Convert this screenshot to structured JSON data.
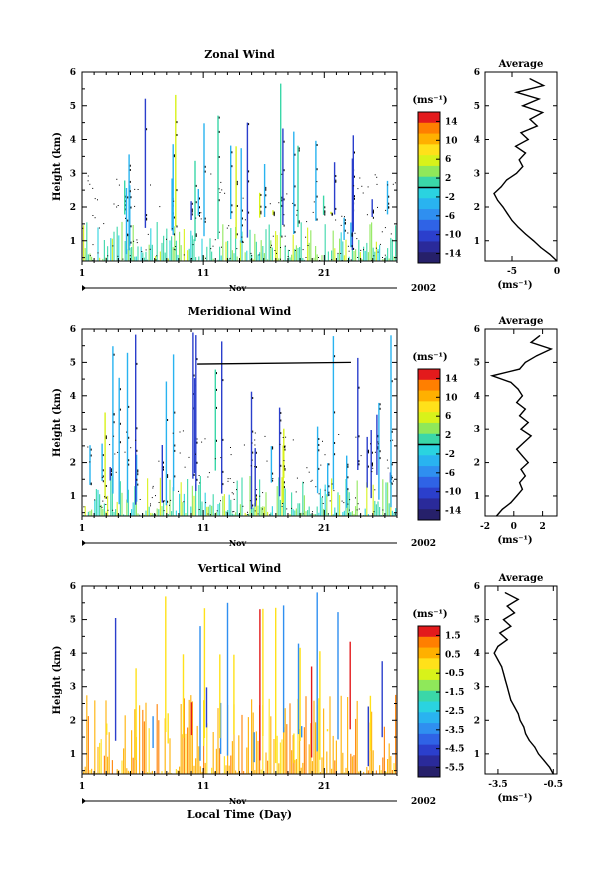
{
  "chart_data": [
    {
      "type": "heatmap",
      "title": "Zonal Wind",
      "ylabel": "Height (km)",
      "xlabel": "",
      "x_ticks": [
        "1",
        "11",
        "21"
      ],
      "x_range": [
        1,
        27
      ],
      "y_ticks": [
        "1",
        "2",
        "3",
        "4",
        "5",
        "6"
      ],
      "ylim": [
        0.4,
        6.0
      ],
      "month_label": "Nov",
      "year_label": "2002",
      "colorbar": {
        "unit": "(ms⁻¹)",
        "ticks": [
          "14",
          "10",
          "6",
          "2",
          "-2",
          "-6",
          "-10",
          "-14"
        ],
        "range": [
          -16,
          16
        ]
      },
      "average": {
        "title": "Average",
        "xlabel": "(ms⁻¹)",
        "x_ticks": [
          "-5",
          "0"
        ],
        "xlim": [
          -8,
          0
        ],
        "heights": [
          0.4,
          0.6,
          0.8,
          1.0,
          1.2,
          1.4,
          1.6,
          1.8,
          2.0,
          2.2,
          2.4,
          2.6,
          2.8,
          3.0,
          3.2,
          3.4,
          3.6,
          3.8,
          4.0,
          4.2,
          4.4,
          4.6,
          4.8,
          5.0,
          5.2,
          5.4,
          5.6,
          5.8
        ],
        "values": [
          0,
          -0.8,
          -1.8,
          -2.6,
          -3.5,
          -4.3,
          -5.0,
          -5.5,
          -6.0,
          -6.6,
          -7.0,
          -6.2,
          -5.6,
          -4.5,
          -3.8,
          -4.2,
          -3.5,
          -4.6,
          -3.2,
          -4.0,
          -2.2,
          -3.0,
          -1.6,
          -3.8,
          -2.0,
          -4.5,
          -1.5,
          -3.0
        ]
      }
    },
    {
      "type": "heatmap",
      "title": "Meridional Wind",
      "ylabel": "Height (km)",
      "xlabel": "",
      "x_ticks": [
        "1",
        "11",
        "21"
      ],
      "x_range": [
        1,
        27
      ],
      "y_ticks": [
        "1",
        "2",
        "3",
        "4",
        "5",
        "6"
      ],
      "ylim": [
        0.4,
        6.0
      ],
      "month_label": "Nov",
      "year_label": "2002",
      "colorbar": {
        "unit": "(ms⁻¹)",
        "ticks": [
          "14",
          "10",
          "6",
          "2",
          "-2",
          "-6",
          "-10",
          "-14"
        ],
        "range": [
          -16,
          16
        ]
      },
      "average": {
        "title": "Average",
        "xlabel": "(ms⁻¹)",
        "x_ticks": [
          "-2",
          "0",
          "2"
        ],
        "xlim": [
          -2,
          3
        ],
        "heights": [
          0.4,
          0.6,
          0.8,
          1.0,
          1.2,
          1.4,
          1.6,
          1.8,
          2.0,
          2.2,
          2.4,
          2.6,
          2.8,
          3.0,
          3.2,
          3.4,
          3.6,
          3.8,
          4.0,
          4.2,
          4.4,
          4.6,
          4.8,
          5.0,
          5.2,
          5.4,
          5.6,
          5.8
        ],
        "values": [
          -1.2,
          -0.8,
          -0.2,
          0.2,
          0.6,
          0.4,
          0.8,
          0.5,
          1.0,
          0.6,
          0.2,
          0.7,
          1.2,
          0.5,
          1.0,
          0.4,
          0.8,
          0.2,
          0.6,
          0.3,
          -0.2,
          -1.5,
          0.4,
          0.8,
          1.6,
          2.6,
          1.2,
          1.8
        ]
      }
    },
    {
      "type": "heatmap",
      "title": "Vertical Wind",
      "ylabel": "Height (km)",
      "xlabel": "Local Time (Day)",
      "x_ticks": [
        "1",
        "11",
        "21"
      ],
      "x_range": [
        1,
        27
      ],
      "y_ticks": [
        "1",
        "2",
        "3",
        "4",
        "5",
        "6"
      ],
      "ylim": [
        0.4,
        6.0
      ],
      "month_label": "Nov",
      "year_label": "2002",
      "colorbar": {
        "unit": "(ms⁻¹)",
        "ticks": [
          "1.5",
          "0.5",
          "-0.5",
          "-1.5",
          "-2.5",
          "-3.5",
          "-4.5",
          "-5.5"
        ],
        "range": [
          -6,
          2
        ]
      },
      "average": {
        "title": "Average",
        "xlabel": "(ms⁻¹)",
        "x_ticks": [
          "-3.5",
          "-0.5"
        ],
        "xlim": [
          -4.2,
          -0.3
        ],
        "heights": [
          0.4,
          0.6,
          0.8,
          1.0,
          1.2,
          1.4,
          1.6,
          1.8,
          2.0,
          2.2,
          2.4,
          2.6,
          2.8,
          3.0,
          3.2,
          3.4,
          3.6,
          3.8,
          4.0,
          4.2,
          4.4,
          4.6,
          4.8,
          5.0,
          5.2,
          5.4,
          5.6,
          5.8
        ],
        "values": [
          -0.5,
          -0.7,
          -1.0,
          -1.3,
          -1.5,
          -1.8,
          -2.0,
          -2.1,
          -2.3,
          -2.4,
          -2.6,
          -2.8,
          -2.9,
          -3.0,
          -3.1,
          -3.2,
          -3.3,
          -3.5,
          -3.7,
          -3.5,
          -3.0,
          -3.4,
          -2.8,
          -3.2,
          -2.6,
          -3.0,
          -2.4,
          -3.1
        ]
      }
    }
  ]
}
